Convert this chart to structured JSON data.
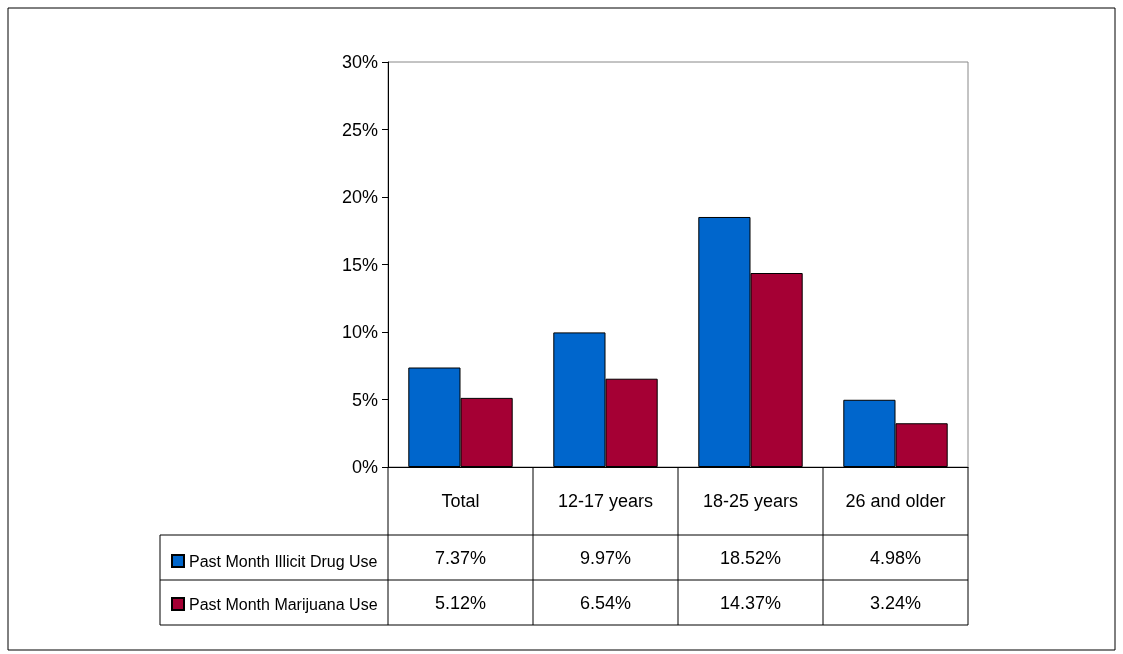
{
  "chart_data": {
    "type": "bar",
    "categories": [
      "Total",
      "12-17 years",
      "18-25 years",
      "26 and older"
    ],
    "series": [
      {
        "name": "Past Month Illicit Drug Use",
        "color": "#0066cc",
        "values": [
          7.37,
          9.97,
          18.52,
          4.98
        ],
        "value_labels": [
          "7.37%",
          "9.97%",
          "18.52%",
          "4.98%"
        ]
      },
      {
        "name": "Past Month Marijuana Use",
        "color": "#a50034",
        "values": [
          5.12,
          6.54,
          14.37,
          3.24
        ],
        "value_labels": [
          "5.12%",
          "6.54%",
          "14.37%",
          "3.24%"
        ]
      }
    ],
    "ylim": [
      0,
      30
    ],
    "yticks": [
      {
        "value": 0,
        "label": "0%"
      },
      {
        "value": 5,
        "label": "5%"
      },
      {
        "value": 10,
        "label": "10%"
      },
      {
        "value": 15,
        "label": "15%"
      },
      {
        "value": 20,
        "label": "20%"
      },
      {
        "value": 25,
        "label": "25%"
      },
      {
        "value": 30,
        "label": "30%"
      }
    ],
    "grid": false,
    "legend": "bottom left"
  }
}
